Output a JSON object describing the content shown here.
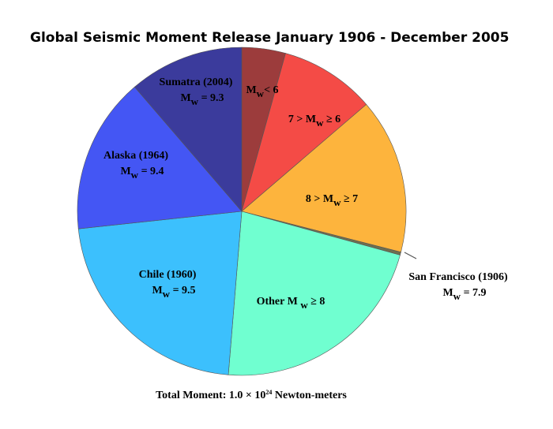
{
  "chart_data": {
    "type": "pie",
    "title": "Global Seismic Moment Release January 1906 - December 2005",
    "footnote": {
      "text": "Total Moment:  1.0 × 10",
      "exponent": "24",
      "unit": " Newton-meters"
    },
    "slices": [
      {
        "symbol": "M",
        "sub": "w",
        "rest": "< 6",
        "value": 4.3,
        "color": "#9c3c3c"
      },
      {
        "prefix": "7 > ",
        "symbol": "M",
        "sub": "w",
        "rest": " ≥ 6",
        "value": 9.4,
        "color": "#f44b46"
      },
      {
        "prefix": "8 > ",
        "symbol": "M",
        "sub": "w",
        "rest": " ≥   7",
        "value": 15.3,
        "color": "#fdb43d"
      },
      {
        "title": "San Francisco (1906)",
        "symbol": "M",
        "sub": "w",
        "rest": " = 7.9",
        "value": 0.3,
        "color": "#6f6f4f"
      },
      {
        "prefix": "Other M ",
        "symbol": "",
        "sub": "w",
        "rest": " ≥ 8",
        "value": 22,
        "color": "#70ffd0"
      },
      {
        "title": "Chile (1960)",
        "symbol": "M",
        "sub": "w",
        "rest": " = 9.5",
        "value": 22,
        "color": "#3cc0fd"
      },
      {
        "title": "Alaska (1964)",
        "symbol": "M",
        "sub": "w",
        "rest": " = 9.4",
        "value": 15.4,
        "color": "#4456f4"
      },
      {
        "title": "Sumatra (2004)",
        "symbol": "M",
        "sub": "w",
        "rest": " = 9.3",
        "value": 11.3,
        "color": "#3b3b9c"
      }
    ]
  }
}
